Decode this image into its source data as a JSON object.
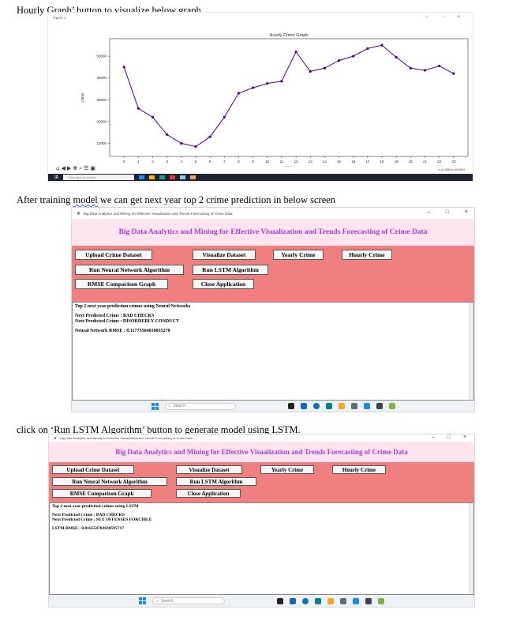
{
  "captions": {
    "c1": "Hourly Graph’ button to visualize below graph",
    "c2_pre": "After training ",
    "c2_squiggle": "model",
    "c2_post": " we can get next year top 2 crime prediction in below screen",
    "c3": "click on ‘Run LSTM Algorithm’ button to generate model using LSTM."
  },
  "figure": {
    "window_title": "Figure 1",
    "minimize": "–",
    "maximize": "▫",
    "close": "×",
    "taskbar_search": "Type here to search",
    "readout": "x=21.5555   y=49158.8"
  },
  "chart_data": {
    "type": "line",
    "title": "Hourly Crime Graph",
    "xlabel": "Hour",
    "ylabel": "Crime",
    "x": [
      0,
      1,
      2,
      3,
      4,
      5,
      6,
      7,
      8,
      9,
      10,
      11,
      12,
      13,
      14,
      15,
      16,
      17,
      18,
      19,
      20,
      21,
      22,
      23
    ],
    "values": [
      45000,
      26000,
      22000,
      14000,
      10000,
      8500,
      13000,
      22000,
      33000,
      35500,
      37500,
      38500,
      52000,
      43000,
      44500,
      48000,
      50000,
      53500,
      55000,
      49500,
      44500,
      43500,
      45500,
      42000
    ],
    "yticks": [
      10000,
      20000,
      30000,
      40000,
      50000
    ],
    "ylim": [
      4000,
      58000
    ],
    "xlim": [
      -1,
      24
    ],
    "grid": false,
    "color": "#4b0082"
  },
  "app": {
    "window_title": "Big Data Analytics and Mining for Effective Visualization and Trends Forecasting of Crime Data",
    "header": "Big Data Analytics and Mining for Effective Visualization and Trends Forecasting of Crime Data",
    "buttons": {
      "upload": "Upload Crime Dataset",
      "visualize": "Visualize Dataset",
      "yearly": "Yearly Crime",
      "hourly": "Hourly Crime",
      "neural": "Run Neural Network Algorithm",
      "lstm": "Run LSTM Algorithm",
      "rmse": "RMSE Comparison Graph",
      "close": "Close Application"
    },
    "taskbar_search": "Search",
    "minimize": "–",
    "maximize": "□",
    "close": "×"
  },
  "output_nn": {
    "line1": "Top 2 next year prediction crimes using Neural Networks",
    "line2": "Next Predicted Crime : BAD CHECKS",
    "line3": "Next Predicted Crime : DISORDERLY CONDUCT",
    "line4": "Neural Network RMSE : 0.11775564010835278"
  },
  "output_lstm": {
    "line1": "Top 2 next year prediction crimes using LSTM",
    "line2": "Next Predicted Crime : BAD CHECKS",
    "line3": "Next Predicted Crime : SEX OFFENSES FORCIBLE",
    "line4": "LSTM RMSE : 0.016554703038595717"
  }
}
